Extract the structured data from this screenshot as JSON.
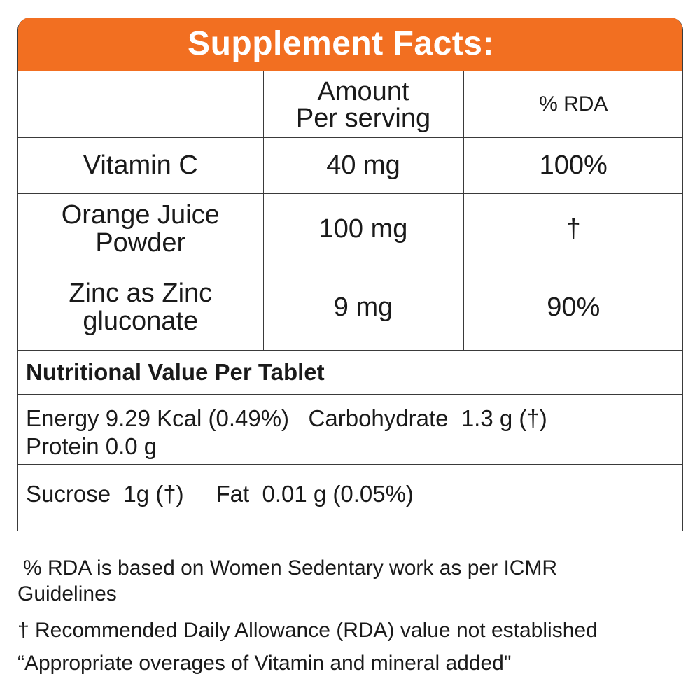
{
  "title": "Supplement Facts:",
  "table": {
    "header": {
      "col1": "",
      "col2_line1": "Amount",
      "col2_line2": "Per serving",
      "col3": "% RDA"
    },
    "rows": [
      {
        "name_line1": "Vitamin C",
        "name_line2": "",
        "amount": "40 mg",
        "rda": "100%"
      },
      {
        "name_line1": "Orange Juice",
        "name_line2": "Powder",
        "amount": "100 mg",
        "rda": "†"
      },
      {
        "name_line1": "Zinc as Zinc",
        "name_line2": "gluconate",
        "amount": "9 mg",
        "rda": "90%"
      }
    ]
  },
  "nutrition": {
    "title": "Nutritional Value Per Tablet",
    "row1_line1": "Energy 9.29 Kcal (0.49%)   Carbohydrate  1.3 g (†)",
    "row1_line2": "Protein 0.0 g",
    "row2": "Sucrose  1g (†)     Fat  0.01 g (0.05%)"
  },
  "footnotes": {
    "rda_line1": "% RDA is based on Women Sedentary work as per ICMR",
    "rda_line2": "Guidelines",
    "dagger": "† Recommended Daily Allowance (RDA) value not established",
    "overages": "“Appropriate overages of Vitamin and mineral added\""
  },
  "colors": {
    "header_background": "#f26f21",
    "header_text": "#ffffff",
    "border": "#3a3a3a",
    "text": "#1a1a1a"
  }
}
